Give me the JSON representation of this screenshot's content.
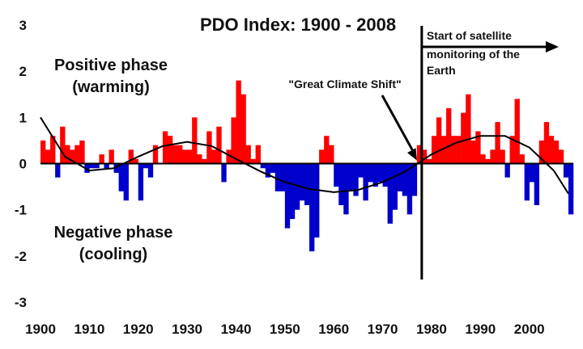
{
  "chart_data": {
    "type": "area",
    "title": "PDO Index: 1900 - 2008",
    "xlabel": "",
    "ylabel": "",
    "xlim": [
      1900,
      2009
    ],
    "ylim": [
      -3,
      3
    ],
    "x_ticks": [
      1900,
      1910,
      1920,
      1930,
      1940,
      1950,
      1960,
      1970,
      1980,
      1990,
      2000
    ],
    "x_tick_labels": [
      "1900",
      "1910",
      "1920",
      "1930",
      "1940",
      "1950",
      "1960",
      "1970",
      "1980",
      "1990",
      "2000"
    ],
    "y_ticks": [
      3,
      2,
      1,
      0,
      -1,
      -2,
      -3
    ],
    "y_tick_labels": [
      "3",
      "2",
      "1",
      "0",
      "-1",
      "-2",
      "-3"
    ],
    "grid": false,
    "colors": {
      "positive": "#ff0000",
      "negative": "#0000cc",
      "curve": "#000000"
    },
    "series": [
      {
        "kind": "monthly-index-area",
        "x": [
          1900,
          1901,
          1902,
          1903,
          1904,
          1905,
          1906,
          1907,
          1908,
          1909,
          1910,
          1911,
          1912,
          1913,
          1914,
          1915,
          1916,
          1917,
          1918,
          1919,
          1920,
          1921,
          1922,
          1923,
          1924,
          1925,
          1926,
          1927,
          1928,
          1929,
          1930,
          1931,
          1932,
          1933,
          1934,
          1935,
          1936,
          1937,
          1938,
          1939,
          1940,
          1941,
          1942,
          1943,
          1944,
          1945,
          1946,
          1947,
          1948,
          1949,
          1950,
          1951,
          1952,
          1953,
          1954,
          1955,
          1956,
          1957,
          1958,
          1959,
          1960,
          1961,
          1962,
          1963,
          1964,
          1965,
          1966,
          1967,
          1968,
          1969,
          1970,
          1971,
          1972,
          1973,
          1974,
          1975,
          1976,
          1977,
          1978,
          1979,
          1980,
          1981,
          1982,
          1983,
          1984,
          1985,
          1986,
          1987,
          1988,
          1989,
          1990,
          1991,
          1992,
          1993,
          1994,
          1995,
          1996,
          1997,
          1998,
          1999,
          2000,
          2001,
          2002,
          2003,
          2004,
          2005,
          2006,
          2007,
          2008
        ],
        "values": [
          0.5,
          0.3,
          0.6,
          -0.3,
          0.8,
          0.4,
          0.3,
          0.4,
          0.5,
          -0.2,
          -0.1,
          -0.1,
          0.2,
          -0.1,
          0.3,
          -0.2,
          -0.6,
          -0.8,
          0.3,
          0.1,
          -0.8,
          -0.1,
          -0.3,
          0.4,
          0.0,
          0.7,
          0.6,
          0.4,
          0.4,
          0.3,
          0.3,
          1.0,
          0.2,
          0.1,
          0.7,
          0.3,
          0.8,
          -0.4,
          0.3,
          1.0,
          1.8,
          1.5,
          0.4,
          0.1,
          0.4,
          -0.1,
          -0.3,
          -0.2,
          -0.6,
          -0.6,
          -1.4,
          -1.2,
          -1.0,
          -0.8,
          -0.9,
          -1.9,
          -1.6,
          0.3,
          0.6,
          0.4,
          -0.5,
          -0.9,
          -1.1,
          -0.6,
          -0.7,
          -0.3,
          -0.8,
          -0.4,
          -0.5,
          -0.4,
          -0.5,
          -1.3,
          -1.0,
          -0.6,
          -0.7,
          -1.1,
          -0.7,
          0.4,
          0.3,
          0.1,
          0.6,
          1.0,
          0.6,
          1.2,
          0.6,
          0.6,
          1.1,
          1.5,
          0.5,
          0.7,
          0.2,
          0.1,
          0.3,
          0.9,
          0.3,
          -0.3,
          0.6,
          1.4,
          0.2,
          -0.8,
          -0.4,
          -0.9,
          0.5,
          0.9,
          0.6,
          0.5,
          0.3,
          -0.3,
          -1.1
        ]
      },
      {
        "kind": "smoothed-cycle",
        "x": [
          1900,
          1905,
          1910,
          1915,
          1920,
          1925,
          1930,
          1935,
          1940,
          1945,
          1950,
          1955,
          1960,
          1965,
          1970,
          1975,
          1980,
          1985,
          1990,
          1995,
          2000,
          2005,
          2008
        ],
        "values": [
          1.0,
          0.15,
          -0.15,
          -0.1,
          0.15,
          0.38,
          0.47,
          0.38,
          0.1,
          -0.17,
          -0.4,
          -0.55,
          -0.62,
          -0.57,
          -0.4,
          -0.15,
          0.2,
          0.45,
          0.6,
          0.6,
          0.35,
          -0.15,
          -0.65
        ]
      }
    ],
    "annotations": [
      {
        "id": "positive",
        "text_lines": [
          "Positive phase",
          "(warming)"
        ]
      },
      {
        "id": "negative",
        "text_lines": [
          "Negative phase",
          "(cooling)"
        ]
      },
      {
        "id": "shift",
        "text": "\"Great Climate Shift\"",
        "points_to_year": 1977
      },
      {
        "id": "satellite",
        "text_lines": [
          "Start of satellite",
          "monitoring of the",
          "Earth"
        ],
        "marker_year": 1978
      }
    ]
  }
}
